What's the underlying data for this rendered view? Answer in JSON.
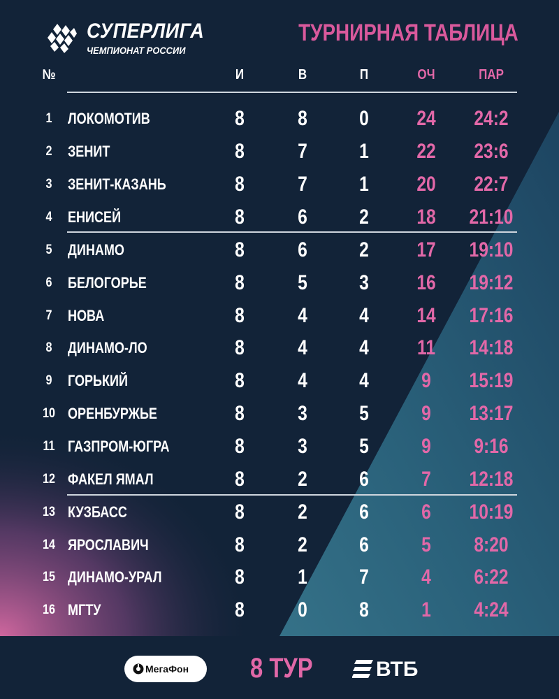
{
  "header": {
    "logo_title": "СУПЕРЛИГА",
    "logo_subtitle": "ЧЕМПИОНАТ РОССИИ",
    "title": "ТУРНИРНАЯ ТАБЛИЦА"
  },
  "columns": {
    "rank": "№",
    "games": "И",
    "wins": "В",
    "losses": "П",
    "points": "ОЧ",
    "sets": "ПАР"
  },
  "standings": [
    {
      "rank": "1",
      "team": "ЛОКОМОТИВ",
      "games": "8",
      "wins": "8",
      "losses": "0",
      "points": "24",
      "sets": "24:2"
    },
    {
      "rank": "2",
      "team": "ЗЕНИТ",
      "games": "8",
      "wins": "7",
      "losses": "1",
      "points": "22",
      "sets": "23:6"
    },
    {
      "rank": "3",
      "team": "ЗЕНИТ-КАЗАНЬ",
      "games": "8",
      "wins": "7",
      "losses": "1",
      "points": "20",
      "sets": "22:7"
    },
    {
      "rank": "4",
      "team": "ЕНИСЕЙ",
      "games": "8",
      "wins": "6",
      "losses": "2",
      "points": "18",
      "sets": "21:10"
    },
    {
      "rank": "5",
      "team": "ДИНАМО",
      "games": "8",
      "wins": "6",
      "losses": "2",
      "points": "17",
      "sets": "19:10"
    },
    {
      "rank": "6",
      "team": "БЕЛОГОРЬЕ",
      "games": "8",
      "wins": "5",
      "losses": "3",
      "points": "16",
      "sets": "19:12"
    },
    {
      "rank": "7",
      "team": "НОВА",
      "games": "8",
      "wins": "4",
      "losses": "4",
      "points": "14",
      "sets": "17:16"
    },
    {
      "rank": "8",
      "team": "ДИНАМО-ЛО",
      "games": "8",
      "wins": "4",
      "losses": "4",
      "points": "11",
      "sets": "14:18"
    },
    {
      "rank": "9",
      "team": "ГОРЬКИЙ",
      "games": "8",
      "wins": "4",
      "losses": "4",
      "points": "9",
      "sets": "15:19"
    },
    {
      "rank": "10",
      "team": "ОРЕНБУРЖЬЕ",
      "games": "8",
      "wins": "3",
      "losses": "5",
      "points": "9",
      "sets": "13:17"
    },
    {
      "rank": "11",
      "team": "ГАЗПРОМ-ЮГРА",
      "games": "8",
      "wins": "3",
      "losses": "5",
      "points": "9",
      "sets": "9:16"
    },
    {
      "rank": "12",
      "team": "ФАКЕЛ ЯМАЛ",
      "games": "8",
      "wins": "2",
      "losses": "6",
      "points": "7",
      "sets": "12:18"
    },
    {
      "rank": "13",
      "team": "КУЗБАСС",
      "games": "8",
      "wins": "2",
      "losses": "6",
      "points": "6",
      "sets": "10:19"
    },
    {
      "rank": "14",
      "team": "ЯРОСЛАВИЧ",
      "games": "8",
      "wins": "2",
      "losses": "6",
      "points": "5",
      "sets": "8:20"
    },
    {
      "rank": "15",
      "team": "ДИНАМО-УРАЛ",
      "games": "8",
      "wins": "1",
      "losses": "7",
      "points": "4",
      "sets": "6:22"
    },
    {
      "rank": "16",
      "team": "МГТУ",
      "games": "8",
      "wins": "0",
      "losses": "8",
      "points": "1",
      "sets": "4:24"
    }
  ],
  "footer": {
    "sponsor_left": "МегаФон",
    "round": "8 ТУР",
    "sponsor_right": "ВТБ"
  },
  "colors": {
    "background": "#122338",
    "accent_pink": "#e268a8",
    "accent_teal": "#2f6f86",
    "text": "#ffffff"
  }
}
